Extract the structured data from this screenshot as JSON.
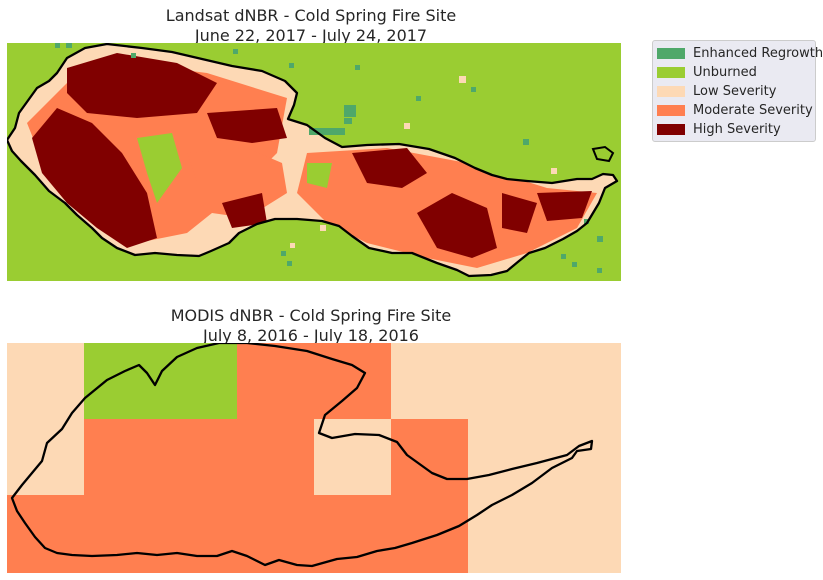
{
  "map_top": {
    "title_line1": "Landsat dNBR - Cold Spring Fire Site",
    "title_line2": "June 22, 2017 - July 24, 2017"
  },
  "map_bottom": {
    "title_line1": "MODIS dNBR - Cold Spring Fire Site",
    "title_line2": "July 8, 2016 - July 18, 2016"
  },
  "legend": {
    "items": [
      {
        "label": "Enhanced Regrowth",
        "color": "#4fa86a"
      },
      {
        "label": "Unburned",
        "color": "#9acd32"
      },
      {
        "label": "Low Severity",
        "color": "#fdd9b5"
      },
      {
        "label": "Moderate Severity",
        "color": "#ff7f50"
      },
      {
        "label": "High Severity",
        "color": "#800000"
      }
    ]
  },
  "colors": {
    "perimeter": "#000000",
    "enhanced_regrowth": "#4fa86a",
    "unburned": "#9acd32",
    "low_severity": "#fdd9b5",
    "moderate_severity": "#ff7f50",
    "high_severity": "#800000"
  }
}
